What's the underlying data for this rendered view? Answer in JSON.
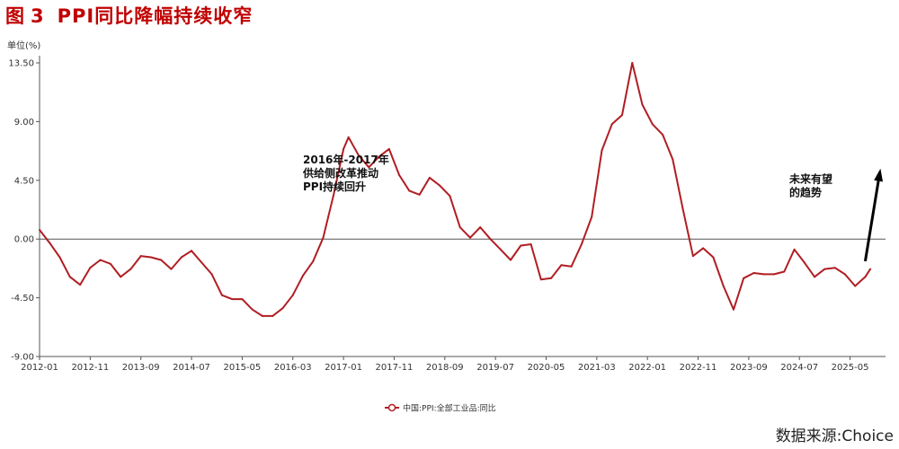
{
  "title": {
    "prefix": "图",
    "number": "3",
    "text": "PPI同比降幅持续收窄"
  },
  "source": "数据来源:Choice",
  "colors": {
    "line": "#b01e23",
    "axis": "#555555",
    "title": "#c00000",
    "arrow": "#000000"
  },
  "chart_data": {
    "type": "line",
    "unit_label": "单位(%)",
    "ylim": [
      -9,
      13.5
    ],
    "y_ticks": [
      13.5,
      9.0,
      4.5,
      0.0,
      -4.5,
      -9.0
    ],
    "y_tick_labels": [
      "13.50",
      "9.00",
      "4.50",
      "0.00",
      "-4.50",
      "-9.00"
    ],
    "x_ticks": [
      "2012-01",
      "2012-11",
      "2013-09",
      "2014-07",
      "2015-05",
      "2016-03",
      "2017-01",
      "2017-11",
      "2018-09",
      "2019-07",
      "2020-05",
      "2021-03",
      "2022-01",
      "2022-11",
      "2023-09",
      "2024-07",
      "2025-05"
    ],
    "grid": false,
    "legend_position": "bottom-center",
    "series": [
      {
        "name": "中国:PPI:全部工业品:同比",
        "x": [
          "2012-01",
          "2012-03",
          "2012-05",
          "2012-07",
          "2012-09",
          "2012-11",
          "2013-01",
          "2013-03",
          "2013-05",
          "2013-07",
          "2013-09",
          "2013-11",
          "2014-01",
          "2014-03",
          "2014-05",
          "2014-07",
          "2014-09",
          "2014-11",
          "2015-01",
          "2015-03",
          "2015-05",
          "2015-07",
          "2015-09",
          "2015-11",
          "2016-01",
          "2016-03",
          "2016-05",
          "2016-07",
          "2016-09",
          "2016-11",
          "2017-01",
          "2017-02",
          "2017-04",
          "2017-06",
          "2017-08",
          "2017-10",
          "2017-12",
          "2018-02",
          "2018-04",
          "2018-06",
          "2018-08",
          "2018-10",
          "2018-12",
          "2019-02",
          "2019-04",
          "2019-06",
          "2019-08",
          "2019-10",
          "2019-12",
          "2020-02",
          "2020-04",
          "2020-06",
          "2020-08",
          "2020-10",
          "2020-12",
          "2021-02",
          "2021-04",
          "2021-06",
          "2021-08",
          "2021-10",
          "2021-12",
          "2022-02",
          "2022-04",
          "2022-06",
          "2022-08",
          "2022-10",
          "2022-12",
          "2023-02",
          "2023-04",
          "2023-06",
          "2023-08",
          "2023-10",
          "2023-12",
          "2024-02",
          "2024-04",
          "2024-06",
          "2024-08",
          "2024-10",
          "2024-12",
          "2025-02",
          "2025-04",
          "2025-06",
          "2025-08",
          "2025-09"
        ],
        "values": [
          0.7,
          -0.3,
          -1.4,
          -2.9,
          -3.5,
          -2.2,
          -1.6,
          -1.9,
          -2.9,
          -2.3,
          -1.3,
          -1.4,
          -1.6,
          -2.3,
          -1.4,
          -0.9,
          -1.8,
          -2.7,
          -4.3,
          -4.6,
          -4.6,
          -5.4,
          -5.9,
          -5.9,
          -5.3,
          -4.3,
          -2.8,
          -1.7,
          0.1,
          3.3,
          6.9,
          7.8,
          6.4,
          5.5,
          6.3,
          6.9,
          4.9,
          3.7,
          3.4,
          4.7,
          4.1,
          3.3,
          0.9,
          0.1,
          0.9,
          0.0,
          -0.8,
          -1.6,
          -0.5,
          -0.4,
          -3.1,
          -3.0,
          -2.0,
          -2.1,
          -0.4,
          1.7,
          6.8,
          8.8,
          9.5,
          13.5,
          10.3,
          8.8,
          8.0,
          6.1,
          2.3,
          -1.3,
          -0.7,
          -1.4,
          -3.6,
          -5.4,
          -3.0,
          -2.6,
          -2.7,
          -2.7,
          -2.5,
          -0.8,
          -1.8,
          -2.9,
          -2.3,
          -2.2,
          -2.7,
          -3.6,
          -2.9,
          -2.3
        ]
      }
    ],
    "annotations": [
      {
        "lines": [
          "2016年-2017年",
          "供给侧改革推动",
          "PPI持续回升"
        ],
        "x": "2016-05",
        "y": 5.8
      },
      {
        "lines": [
          "未来有望",
          "的趋势"
        ],
        "x": "2024-05",
        "y": 4.3
      }
    ],
    "arrow": {
      "from": {
        "x": "2025-08",
        "y": -1.7
      },
      "to": {
        "x": "2025-11",
        "y": 5.4
      }
    }
  }
}
